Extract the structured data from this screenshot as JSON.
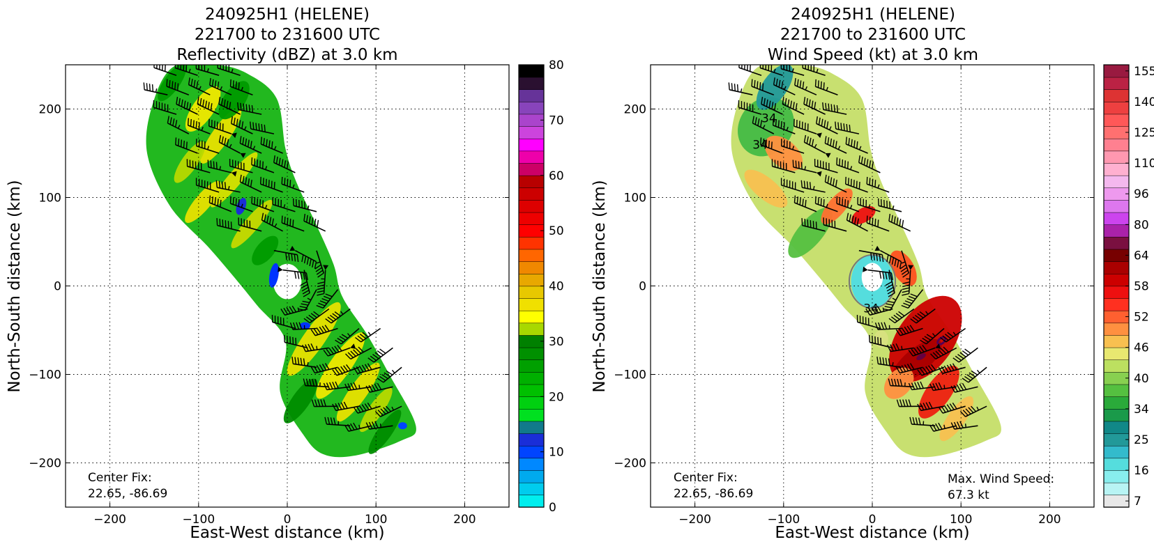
{
  "charts": [
    {
      "title_lines": [
        "240925H1 (HELENE)",
        "221700 to 231600 UTC",
        "Reflectivity (dBZ) at 3.0 km"
      ],
      "xlabel": "East-West distance (km)",
      "ylabel": "North-South distance (km)",
      "note_lines": [
        "Center Fix:",
        "22.65, -86.69"
      ]
    },
    {
      "title_lines": [
        "240925H1 (HELENE)",
        "221700 to 231600 UTC",
        "Wind Speed (kt) at 3.0 km"
      ],
      "xlabel": "East-West distance (km)",
      "ylabel": "North-South distance (km)",
      "note_lines": [
        "Center Fix:",
        "22.65, -86.69"
      ],
      "max_lines": [
        "Max. Wind Speed:",
        "67.3 kt"
      ]
    }
  ],
  "chart_data": [
    {
      "type": "heatmap",
      "title": "240925H1 (HELENE) 221700 to 231600 UTC Reflectivity (dBZ) at 3.0 km",
      "xlabel": "East-West distance (km)",
      "ylabel": "North-South distance (km)",
      "xlim": [
        -250,
        250
      ],
      "ylim": [
        -250,
        250
      ],
      "xticks": [
        -200,
        -100,
        0,
        100,
        200
      ],
      "yticks": [
        -200,
        -100,
        0,
        100,
        200
      ],
      "grid": true,
      "colorbar": {
        "label": "Reflectivity (dBZ)",
        "range": [
          0,
          80
        ],
        "ticks": [
          0,
          10,
          20,
          30,
          40,
          50,
          60,
          70,
          80
        ],
        "colors": [
          "#00eeee",
          "#00ccee",
          "#00aaee",
          "#0088ff",
          "#0044ff",
          "#1a2ed8",
          "#117a8b",
          "#00e020",
          "#00d010",
          "#00c000",
          "#00b000",
          "#00a000",
          "#009000",
          "#008000",
          "#a8d800",
          "#ffff00",
          "#f0e000",
          "#e8c800",
          "#e8a800",
          "#f08800",
          "#ff6600",
          "#ff3300",
          "#ff0000",
          "#ee0000",
          "#dd0000",
          "#cc0000",
          "#b80000",
          "#cc0066",
          "#ee00aa",
          "#ff00ff",
          "#cc44dd",
          "#aa44cc",
          "#8844bb",
          "#663399",
          "#2a1030",
          "#000000"
        ]
      },
      "center_fix": "22.65, -86.69",
      "barb_speed_kt_range": [
        34,
        67
      ]
    },
    {
      "type": "heatmap",
      "title": "240925H1 (HELENE) 221700 to 231600 UTC Wind Speed (kt) at 3.0 km",
      "xlabel": "East-West distance (km)",
      "ylabel": "North-South distance (km)",
      "xlim": [
        -250,
        250
      ],
      "ylim": [
        -250,
        250
      ],
      "xticks": [
        -200,
        -100,
        0,
        100,
        200
      ],
      "yticks": [
        -200,
        -100,
        0,
        100,
        200
      ],
      "grid": true,
      "colorbar": {
        "label": "Wind Speed (kt)",
        "tick_labels": [
          "7",
          "16",
          "25",
          "34",
          "40",
          "46",
          "52",
          "58",
          "64",
          "80",
          "96",
          "110",
          "125",
          "140",
          "155"
        ],
        "colors": [
          "#e8e8e8",
          "#b8f4f4",
          "#88eeee",
          "#55dddd",
          "#33bbcc",
          "#229999",
          "#118888",
          "#1a9a4a",
          "#2aaa3a",
          "#55c040",
          "#88d050",
          "#bce060",
          "#e8e870",
          "#f8c050",
          "#ff9040",
          "#ff6030",
          "#ff3020",
          "#ee1010",
          "#cc0000",
          "#aa0000",
          "#770000",
          "#7a1040",
          "#aa22aa",
          "#cc44ee",
          "#dd77ee",
          "#ee99ee",
          "#f4b8ee",
          "#ffb0d0",
          "#ff98b0",
          "#ff8090",
          "#ff7070",
          "#ff5858",
          "#ee4040",
          "#dd3333",
          "#bb2244",
          "#991a40"
        ]
      },
      "contour_labels": [
        "34",
        "34",
        "34"
      ],
      "center_fix": "22.65, -86.69",
      "max_wind_speed_kt": 67.3
    }
  ]
}
